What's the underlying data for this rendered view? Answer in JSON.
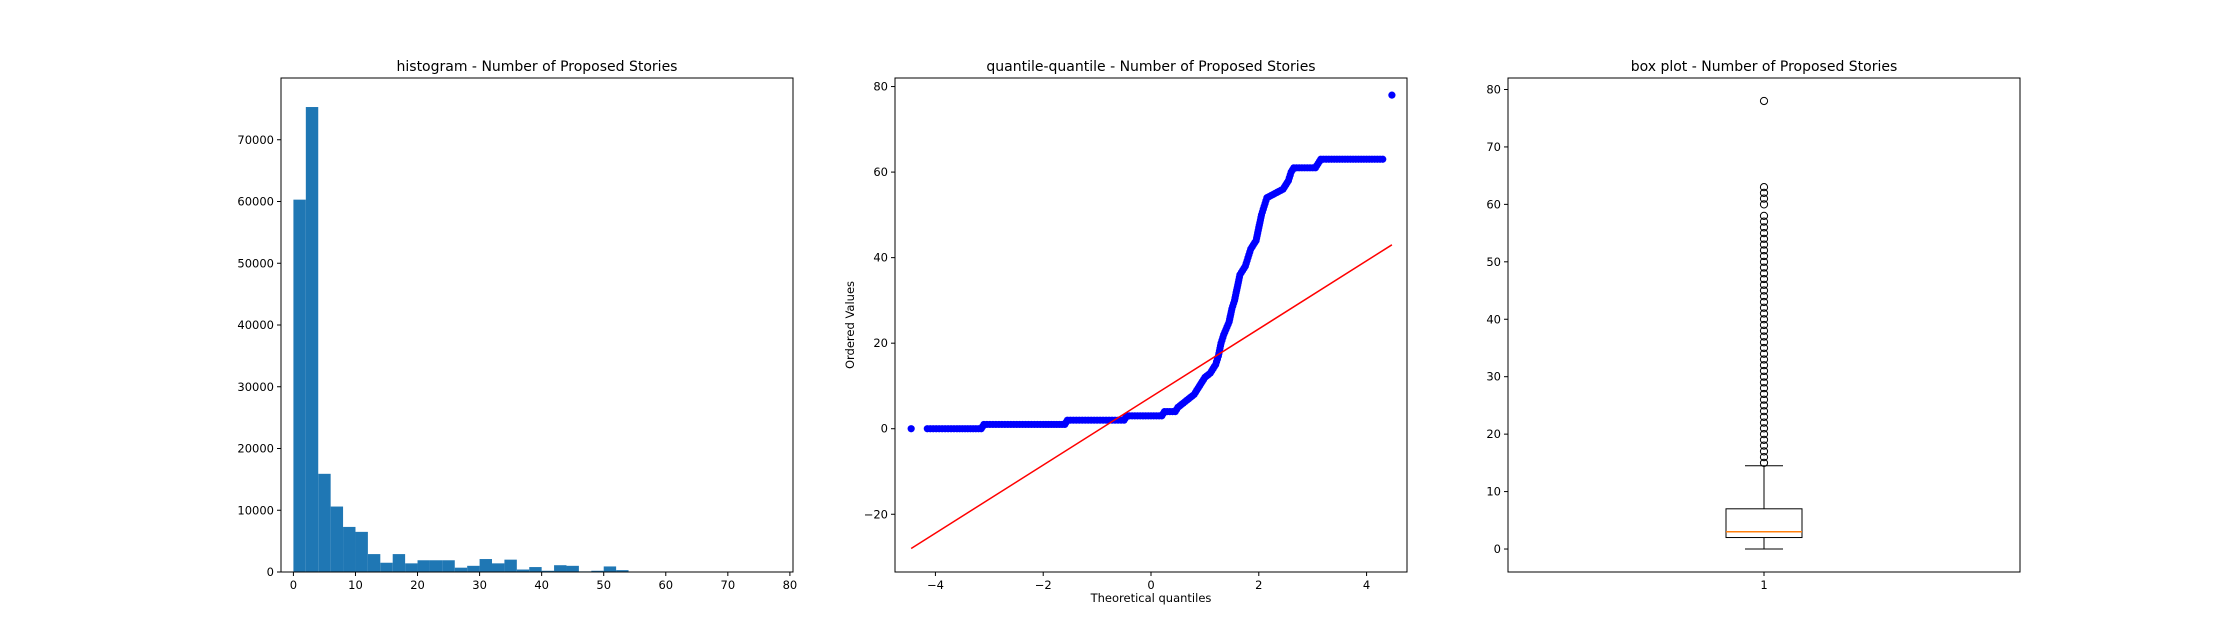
{
  "chart_data": [
    {
      "type": "bar",
      "title": "histogram - Number of Proposed Stories",
      "xlabel": "",
      "ylabel": "",
      "xlim": [
        -2,
        80.5
      ],
      "ylim": [
        0,
        80000
      ],
      "xticks": [
        0,
        10,
        20,
        30,
        40,
        50,
        60,
        70,
        80
      ],
      "yticks": [
        0,
        10000,
        20000,
        30000,
        40000,
        50000,
        60000,
        70000
      ],
      "bin_width": 2,
      "bin_starts": [
        0,
        2,
        4,
        6,
        8,
        10,
        12,
        14,
        16,
        18,
        20,
        22,
        24,
        26,
        28,
        30,
        32,
        34,
        36,
        38,
        40,
        42,
        44,
        46,
        48,
        50,
        52,
        54,
        56,
        58,
        60,
        62
      ],
      "values": [
        60300,
        75300,
        15900,
        10600,
        7300,
        6500,
        2900,
        1500,
        2900,
        1400,
        1900,
        1900,
        1900,
        700,
        1000,
        2100,
        1400,
        2000,
        400,
        800,
        200,
        1100,
        1000,
        100,
        200,
        900,
        300,
        0,
        0,
        0,
        0,
        0
      ],
      "color": "#1f77b4",
      "grid": false
    },
    {
      "type": "scatter",
      "title": "quantile-quantile - Number of Proposed Stories",
      "xlabel": "Theoretical quantiles",
      "ylabel": "Ordered Values",
      "xlim": [
        -4.75,
        4.75
      ],
      "ylim": [
        -33.5,
        82
      ],
      "xticks": [
        -4,
        -2,
        0,
        2,
        4
      ],
      "yticks": [
        -20,
        0,
        20,
        40,
        60,
        80
      ],
      "points": [
        [
          -4.45,
          0
        ],
        [
          -4.15,
          0
        ],
        [
          -3.6,
          0
        ],
        [
          -3.15,
          0
        ],
        [
          -3.1,
          1
        ],
        [
          -2.6,
          1
        ],
        [
          -2.0,
          1
        ],
        [
          -1.6,
          1
        ],
        [
          -1.55,
          2
        ],
        [
          -1.0,
          2
        ],
        [
          -0.5,
          2
        ],
        [
          -0.45,
          3
        ],
        [
          0.0,
          3
        ],
        [
          0.2,
          3
        ],
        [
          0.25,
          4
        ],
        [
          0.45,
          4
        ],
        [
          0.5,
          5
        ],
        [
          0.6,
          6
        ],
        [
          0.7,
          7
        ],
        [
          0.8,
          8
        ],
        [
          0.9,
          10
        ],
        [
          1.0,
          12
        ],
        [
          1.1,
          13
        ],
        [
          1.2,
          15
        ],
        [
          1.25,
          17
        ],
        [
          1.3,
          20
        ],
        [
          1.35,
          22
        ],
        [
          1.45,
          25
        ],
        [
          1.5,
          28
        ],
        [
          1.55,
          30
        ],
        [
          1.6,
          33
        ],
        [
          1.65,
          36
        ],
        [
          1.75,
          38
        ],
        [
          1.8,
          40
        ],
        [
          1.85,
          42
        ],
        [
          1.95,
          44
        ],
        [
          2.0,
          47
        ],
        [
          2.05,
          50
        ],
        [
          2.1,
          52
        ],
        [
          2.15,
          54
        ],
        [
          2.3,
          55
        ],
        [
          2.45,
          56
        ],
        [
          2.55,
          58
        ],
        [
          2.6,
          60
        ],
        [
          2.65,
          61
        ],
        [
          2.9,
          61
        ],
        [
          3.05,
          61
        ],
        [
          3.15,
          63
        ],
        [
          3.5,
          63
        ],
        [
          3.9,
          63
        ],
        [
          4.3,
          63
        ],
        [
          4.47,
          78
        ]
      ],
      "fit_line": [
        [
          -4.45,
          -28
        ],
        [
          4.47,
          43
        ]
      ],
      "point_color": "#0000ff",
      "line_color": "#ff0000",
      "grid": false
    },
    {
      "type": "box",
      "title": "box plot - Number of Proposed Stories",
      "xlabel": "",
      "ylabel": "",
      "ylim": [
        -4,
        82
      ],
      "yticks": [
        0,
        10,
        20,
        30,
        40,
        50,
        60,
        70,
        80
      ],
      "xticks": [
        "1"
      ],
      "box": {
        "whisker_low": 0,
        "q1": 2,
        "median": 3,
        "q3": 7,
        "whisker_high": 14.5
      },
      "outliers": [
        15,
        16,
        17,
        18,
        19,
        20,
        21,
        22,
        23,
        24,
        25,
        26,
        27,
        28,
        29,
        30,
        31,
        32,
        33,
        34,
        35,
        36,
        37,
        38,
        39,
        40,
        41,
        42,
        43,
        44,
        45,
        46,
        47,
        48,
        49,
        50,
        51,
        52,
        53,
        54,
        55,
        56,
        57,
        58,
        60,
        61,
        62,
        63,
        78
      ],
      "median_color": "#ff7f0e",
      "grid": false
    }
  ]
}
